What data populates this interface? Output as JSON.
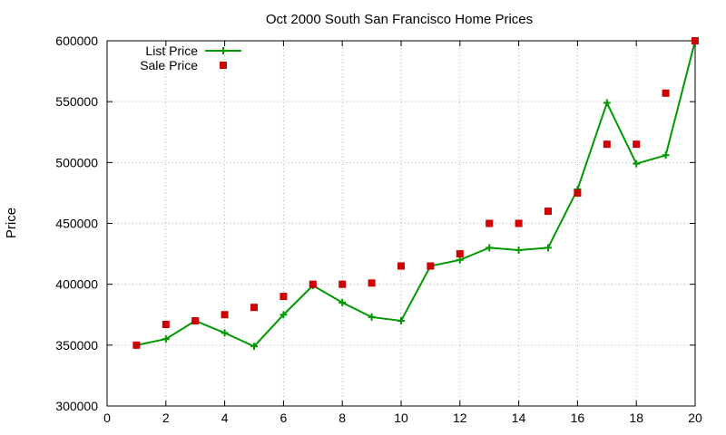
{
  "chart_data": {
    "type": "line",
    "title": "Oct 2000 South San Francisco Home Prices",
    "xlabel": "",
    "ylabel": "Price",
    "xlim": [
      0,
      20
    ],
    "ylim": [
      300000,
      600000
    ],
    "x_ticks": [
      0,
      2,
      4,
      6,
      8,
      10,
      12,
      14,
      16,
      18,
      20
    ],
    "y_ticks": [
      300000,
      350000,
      400000,
      450000,
      500000,
      550000,
      600000
    ],
    "grid": true,
    "legend_position": "top-left",
    "series": [
      {
        "name": "List Price",
        "style": "line-with-plus-markers",
        "color": "#009900",
        "x": [
          1,
          2,
          3,
          4,
          5,
          6,
          7,
          8,
          9,
          10,
          11,
          12,
          13,
          14,
          15,
          16,
          17,
          18,
          19,
          20
        ],
        "y": [
          350000,
          355000,
          370000,
          360000,
          349000,
          375000,
          399000,
          385000,
          373000,
          370000,
          415000,
          420000,
          430000,
          428000,
          430000,
          478000,
          549000,
          499000,
          506000,
          600000
        ]
      },
      {
        "name": "Sale Price",
        "style": "square-markers",
        "color": "#cc0000",
        "x": [
          1,
          2,
          3,
          4,
          5,
          6,
          7,
          8,
          9,
          10,
          11,
          12,
          13,
          14,
          15,
          16,
          17,
          18,
          19,
          20
        ],
        "y": [
          350000,
          367000,
          370000,
          375000,
          381000,
          390000,
          400000,
          400000,
          401000,
          415000,
          415000,
          425000,
          450000,
          450000,
          460000,
          475000,
          515000,
          515000,
          557000,
          600000
        ]
      }
    ]
  }
}
